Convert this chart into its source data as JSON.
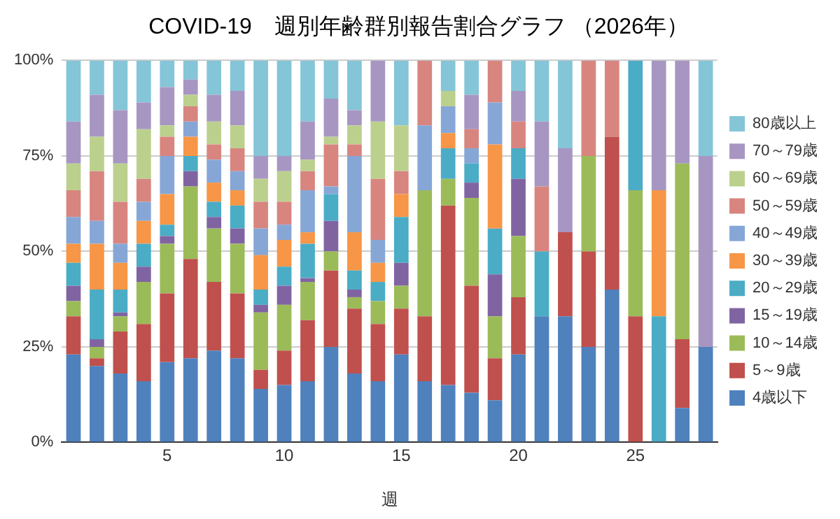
{
  "chart_data": {
    "type": "bar",
    "stacked": true,
    "title": "COVID-19　週別年齢群別報告割合グラフ （2026年）",
    "xlabel": "週",
    "categories": [
      null,
      null,
      null,
      null,
      "5",
      null,
      null,
      null,
      null,
      "10",
      null,
      null,
      null,
      null,
      "15",
      null,
      null,
      null,
      null,
      "20",
      null,
      null,
      null,
      null,
      "25",
      null,
      null,
      null
    ],
    "ylim": [
      0,
      100
    ],
    "yticks": [
      {
        "value": 0,
        "label": "0%"
      },
      {
        "value": 25,
        "label": "25%"
      },
      {
        "value": 50,
        "label": "50%"
      },
      {
        "value": 75,
        "label": "75%"
      },
      {
        "value": 100,
        "label": "100%"
      }
    ],
    "grid": "y",
    "legend": "right",
    "series": [
      {
        "name": "4歳以下",
        "color": "#4f81bd",
        "values": [
          23,
          20,
          18,
          16,
          21,
          22,
          24,
          22,
          14,
          15,
          16,
          25,
          18,
          16,
          23,
          16,
          15,
          13,
          11,
          23,
          33,
          33,
          25,
          40,
          0,
          0,
          9,
          25
        ]
      },
      {
        "name": "5～9歳",
        "color": "#c0504d",
        "values": [
          10,
          2,
          11,
          15,
          18,
          26,
          18,
          17,
          5,
          9,
          16,
          20,
          17,
          15,
          12,
          17,
          47,
          28,
          11,
          15,
          0,
          22,
          25,
          40,
          33,
          0,
          18,
          0
        ]
      },
      {
        "name": "10～14歳",
        "color": "#9bbb59",
        "values": [
          4,
          3,
          4,
          11,
          13,
          19,
          14,
          13,
          15,
          12,
          10,
          5,
          3,
          6,
          6,
          33,
          7,
          23,
          11,
          16,
          0,
          0,
          25,
          0,
          33,
          0,
          46,
          0
        ]
      },
      {
        "name": "15～19歳",
        "color": "#8064a2",
        "values": [
          4,
          2,
          1,
          4,
          2,
          4,
          3,
          4,
          2,
          5,
          1,
          8,
          2,
          0,
          6,
          0,
          0,
          4,
          11,
          15,
          0,
          0,
          0,
          0,
          0,
          0,
          0,
          0
        ]
      },
      {
        "name": "20～29歳",
        "color": "#4bacc6",
        "values": [
          6,
          13,
          6,
          6,
          3,
          4,
          4,
          6,
          4,
          5,
          9,
          7,
          5,
          5,
          12,
          0,
          8,
          5,
          12,
          8,
          17,
          0,
          0,
          0,
          34,
          33,
          0,
          0
        ]
      },
      {
        "name": "30～39歳",
        "color": "#f79646",
        "values": [
          5,
          12,
          7,
          6,
          8,
          5,
          5,
          4,
          9,
          7,
          3,
          0,
          10,
          5,
          6,
          0,
          4,
          0,
          22,
          0,
          0,
          0,
          0,
          0,
          0,
          33,
          0,
          0
        ]
      },
      {
        "name": "40～49歳",
        "color": "#86a7d6",
        "values": [
          7,
          6,
          5,
          5,
          10,
          4,
          6,
          5,
          7,
          4,
          11,
          2,
          20,
          6,
          0,
          17,
          7,
          4,
          11,
          0,
          0,
          0,
          0,
          0,
          0,
          0,
          0,
          0
        ]
      },
      {
        "name": "50～59歳",
        "color": "#d8857f",
        "values": [
          7,
          13,
          11,
          6,
          5,
          4,
          4,
          6,
          7,
          6,
          5,
          11,
          3,
          16,
          6,
          17,
          0,
          5,
          11,
          7,
          17,
          0,
          25,
          20,
          0,
          0,
          0,
          0
        ]
      },
      {
        "name": "60～69歳",
        "color": "#bcd08e",
        "values": [
          7,
          9,
          10,
          13,
          3,
          3,
          6,
          6,
          6,
          8,
          3,
          2,
          5,
          15,
          12,
          0,
          4,
          0,
          0,
          0,
          0,
          0,
          0,
          0,
          0,
          0,
          0,
          0
        ]
      },
      {
        "name": "70～79歳",
        "color": "#a796c2",
        "values": [
          11,
          11,
          14,
          7,
          10,
          4,
          7,
          9,
          6,
          4,
          10,
          10,
          4,
          16,
          0,
          0,
          0,
          9,
          0,
          8,
          17,
          22,
          0,
          0,
          0,
          34,
          27,
          50
        ]
      },
      {
        "name": "80歳以上",
        "color": "#84c5d8",
        "values": [
          16,
          9,
          13,
          11,
          7,
          5,
          9,
          8,
          25,
          25,
          16,
          10,
          13,
          0,
          17,
          0,
          8,
          9,
          0,
          8,
          16,
          23,
          0,
          0,
          0,
          0,
          0,
          25
        ]
      }
    ]
  }
}
